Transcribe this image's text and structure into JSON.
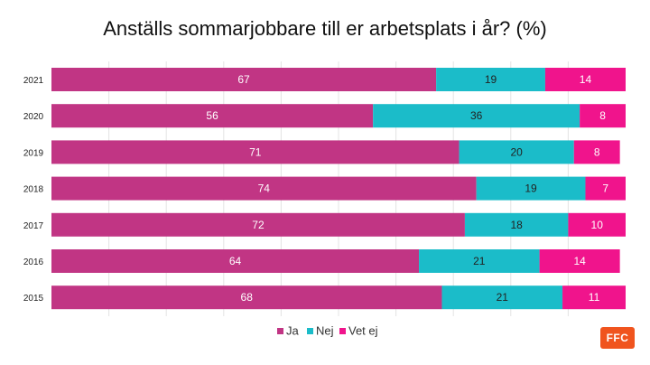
{
  "chart_data": {
    "type": "bar",
    "orientation": "horizontal",
    "stacked": true,
    "title": "Anställs sommarjobbare till er arbetsplats i år? (%)",
    "categories": [
      "2021",
      "2020",
      "2019",
      "2018",
      "2017",
      "2016",
      "2015"
    ],
    "series": [
      {
        "name": "Ja",
        "color": "#c13584",
        "label_color": "#ffffff",
        "values": [
          67,
          56,
          71,
          74,
          72,
          64,
          68
        ]
      },
      {
        "name": "Nej",
        "color": "#1bbcc9",
        "label_color": "#222222",
        "values": [
          19,
          36,
          20,
          19,
          18,
          21,
          21
        ]
      },
      {
        "name": "Vet ej",
        "color": "#f0148c",
        "label_color": "#ffffff",
        "values": [
          14,
          8,
          8,
          7,
          10,
          14,
          11
        ]
      }
    ],
    "xlim": [
      0,
      100
    ],
    "grid": true,
    "legend_position": "bottom"
  },
  "logo": {
    "text": "FFC",
    "color": "#f0541e"
  }
}
